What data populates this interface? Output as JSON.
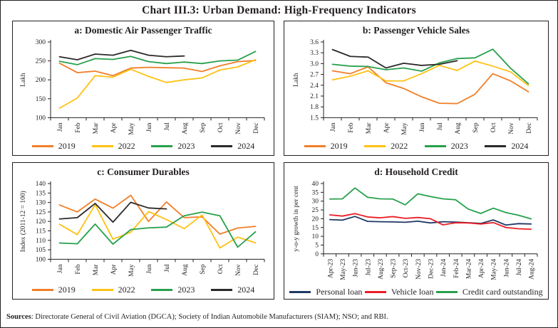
{
  "page": {
    "title": "Chart III.3: Urban Demand: High-Frequency Indicators",
    "sources_bold": "Sources",
    "sources_rest": ": Directorate General of Civil Aviation (DGCA); Society of Indian Automobile Manufacturers (SIAM); NSO; and RBI."
  },
  "colors": {
    "orange_2019": "#F07E28",
    "yellow_2022": "#FFC113",
    "green_2023": "#27A04C",
    "black_2024": "#2B2A29",
    "navy_personal": "#1F3864",
    "red_vehicle": "#EC1C24",
    "green_credit": "#27A04C",
    "axis": "#231f20"
  },
  "chart_data": [
    {
      "id": "a",
      "type": "line",
      "title": "a: Domestic Air Passenger Traffic",
      "ylabel": "Lakh",
      "ylim": [
        100,
        300
      ],
      "ytick_step": 50,
      "ydecimals": 0,
      "grid": false,
      "legend_position": "bottom",
      "categories": [
        "Jan",
        "Feb",
        "Mar",
        "Apr",
        "May",
        "Jun",
        "Jul",
        "Aug",
        "Sep",
        "Oct",
        "Nov",
        "Dec"
      ],
      "series": [
        {
          "name": "2019",
          "color": "#F07E28",
          "values": [
            244,
            219,
            223,
            211,
            231,
            233,
            232,
            231,
            222,
            237,
            248,
            251
          ]
        },
        {
          "name": "2022",
          "color": "#FFC113",
          "values": [
            125,
            152,
            211,
            207,
            228,
            209,
            193,
            200,
            205,
            226,
            234,
            253
          ]
        },
        {
          "name": "2023",
          "color": "#27A04C",
          "values": [
            249,
            240,
            256,
            254,
            262,
            248,
            243,
            247,
            243,
            250,
            252,
            275
          ]
        },
        {
          "name": "2024",
          "color": "#2B2A29",
          "values": [
            261,
            253,
            268,
            265,
            278,
            265,
            261,
            263,
            null,
            null,
            null,
            null
          ]
        }
      ]
    },
    {
      "id": "b",
      "type": "line",
      "title": "b: Passenger Vehicle Sales",
      "ylabel": "Lakh",
      "ylim": [
        1.5,
        3.6
      ],
      "ytick_step": 0.3,
      "ydecimals": 1,
      "grid": false,
      "legend_position": "bottom",
      "categories": [
        "Jan",
        "Feb",
        "Mar",
        "Apr",
        "May",
        "Jun",
        "Jul",
        "Aug",
        "Sep",
        "Oct",
        "Nov",
        "Dec"
      ],
      "series": [
        {
          "name": "2019",
          "color": "#F07E28",
          "values": [
            2.8,
            2.72,
            2.91,
            2.47,
            2.31,
            2.08,
            1.9,
            1.89,
            2.15,
            2.72,
            2.52,
            2.22
          ]
        },
        {
          "name": "2022",
          "color": "#FFC113",
          "values": [
            2.55,
            2.65,
            2.8,
            2.52,
            2.52,
            2.72,
            2.95,
            2.81,
            3.07,
            2.93,
            2.77,
            2.39
          ]
        },
        {
          "name": "2023",
          "color": "#27A04C",
          "values": [
            2.98,
            2.93,
            2.92,
            2.83,
            2.88,
            2.79,
            3.02,
            3.14,
            3.16,
            3.4,
            2.87,
            2.44
          ]
        },
        {
          "name": "2024",
          "color": "#2B2A29",
          "values": [
            3.39,
            3.2,
            3.18,
            2.88,
            3.01,
            2.95,
            2.98,
            3.08,
            null,
            null,
            null,
            null
          ]
        }
      ]
    },
    {
      "id": "c",
      "type": "line",
      "title": "c: Consumer Durables",
      "ylabel": "Index (2011-12 = 100)",
      "ylim": [
        100,
        140
      ],
      "ytick_step": 5,
      "ydecimals": 0,
      "grid": false,
      "legend_position": "bottom",
      "categories": [
        "Jan",
        "Feb",
        "Mar",
        "Apr",
        "May",
        "Jun",
        "Jul",
        "Aug",
        "Sep",
        "Oct",
        "Nov",
        "Dec"
      ],
      "series": [
        {
          "name": "2019",
          "color": "#F07E28",
          "values": [
            128.7,
            125.0,
            131.8,
            127.0,
            133.8,
            120.0,
            130.3,
            122.0,
            122.4,
            113.3,
            116.5,
            117.4
          ]
        },
        {
          "name": "2022",
          "color": "#FFC113",
          "values": [
            118.5,
            113.0,
            128.8,
            110.6,
            114.3,
            125.2,
            121.0,
            116.2,
            123.4,
            106.0,
            111.7,
            108.7
          ]
        },
        {
          "name": "2023",
          "color": "#27A04C",
          "values": [
            108.6,
            108.2,
            118.6,
            108.0,
            115.7,
            116.6,
            117.0,
            123.0,
            124.9,
            123.0,
            106.4,
            114.5
          ]
        },
        {
          "name": "2024",
          "color": "#2B2A29",
          "values": [
            121.3,
            122.0,
            129.5,
            119.6,
            130.1,
            127.1,
            126.6,
            null,
            null,
            null,
            null,
            null
          ]
        }
      ]
    },
    {
      "id": "d",
      "type": "line",
      "title": "d: Household Credit",
      "ylabel": "y-o-y growth in per cent",
      "ylim": [
        0,
        40
      ],
      "ytick_step": 5,
      "ydecimals": 0,
      "grid": false,
      "legend_position": "bottom",
      "categories": [
        "Apr-23",
        "May-23",
        "Jun-23",
        "Jul-23",
        "Aug-23",
        "Sep-23",
        "Oct-23",
        "Nov-23",
        "Dec-23",
        "Jan-24",
        "Feb-24",
        "Mar-24",
        "Apr-24",
        "May-24",
        "Jun-24",
        "Jul-24",
        "Aug-24"
      ],
      "series": [
        {
          "name": "Personal loan",
          "color": "#1F3864",
          "values": [
            19.5,
            19.2,
            21.3,
            18.5,
            18.3,
            18.2,
            18.0,
            18.6,
            17.6,
            18.3,
            18.1,
            17.7,
            17.3,
            19.3,
            16.4,
            17.2,
            17.0
          ]
        },
        {
          "name": "Vehicle loan",
          "color": "#EC1C24",
          "values": [
            22.2,
            21.5,
            22.9,
            21.0,
            20.5,
            21.2,
            20.2,
            20.7,
            20.0,
            16.5,
            17.7,
            17.6,
            17.0,
            17.8,
            15.0,
            14.3,
            14.0
          ]
        },
        {
          "name": "Credit card outstanding",
          "color": "#27A04C",
          "values": [
            31.2,
            31.3,
            37.5,
            32.2,
            31.3,
            31.2,
            27.9,
            34.2,
            32.6,
            31.3,
            30.8,
            25.5,
            23.0,
            26.0,
            23.5,
            22.0,
            19.9
          ]
        }
      ]
    }
  ]
}
